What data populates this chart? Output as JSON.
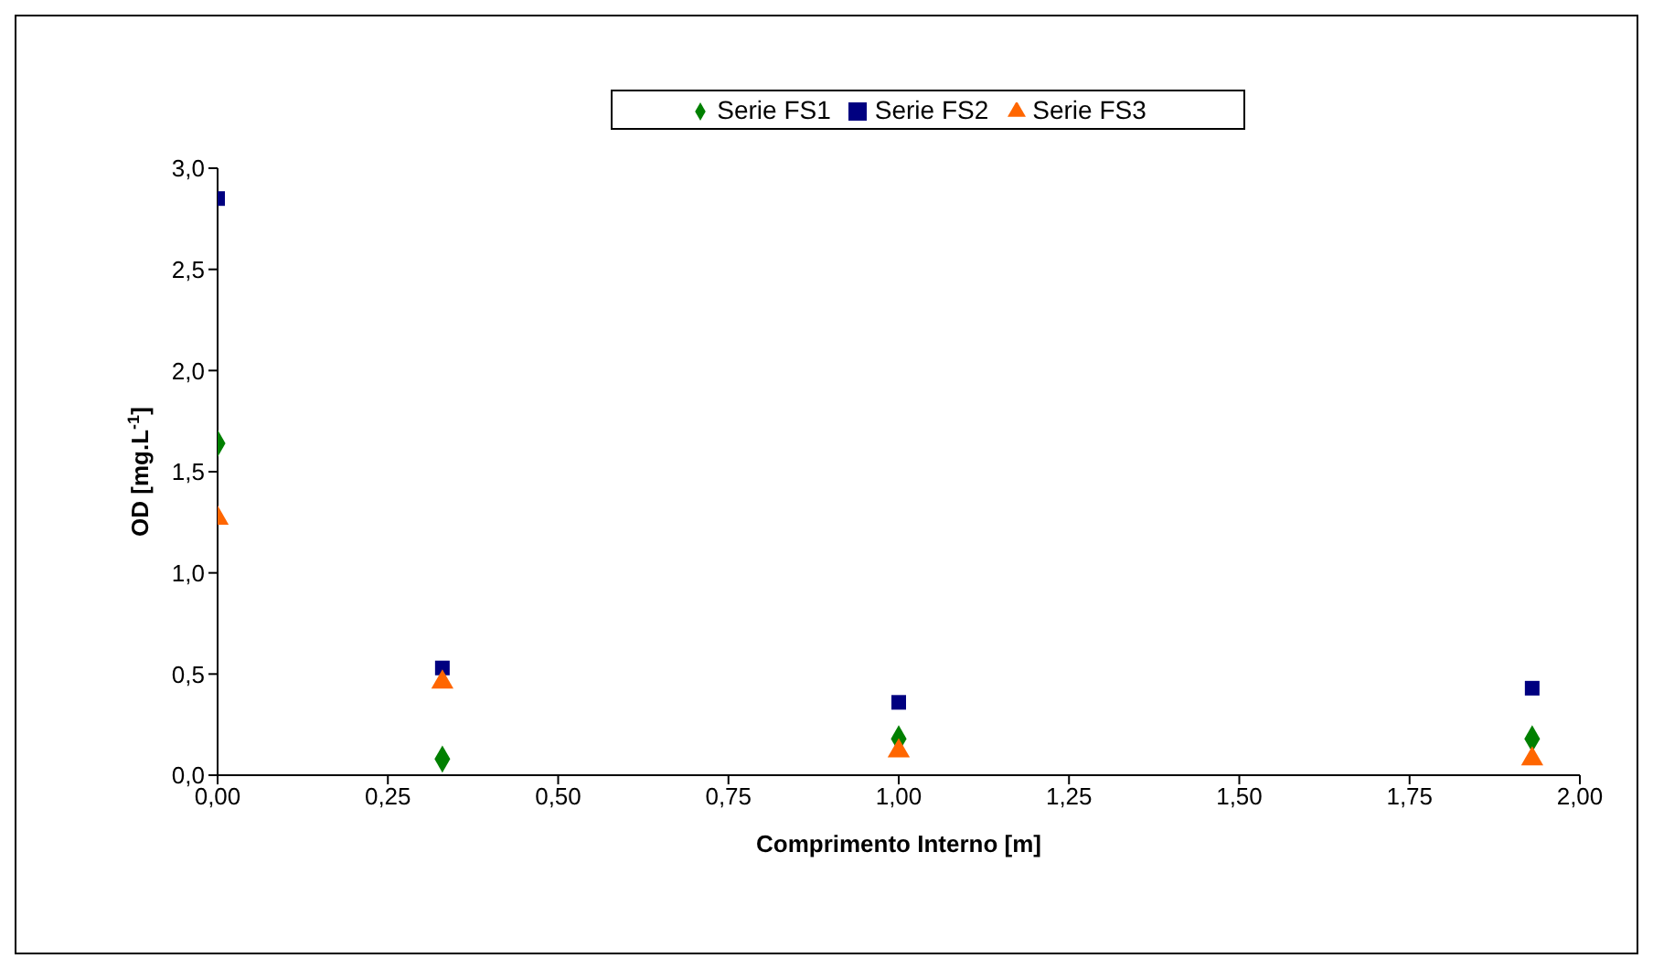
{
  "chart_data": {
    "type": "scatter",
    "xlabel": "Comprimento Interno [m]",
    "ylabel": "OD [mg.L$^{-1}$]",
    "x": [
      0,
      0.33,
      1,
      1.93
    ],
    "series": [
      {
        "name": "Serie FS1",
        "color": "#008000",
        "marker": "diamond",
        "values": [
          1.64,
          0.08,
          0.18,
          0.18
        ]
      },
      {
        "name": "Serie FS2",
        "color": "#000080",
        "marker": "square",
        "values": [
          2.85,
          0.53,
          0.36,
          0.43
        ]
      },
      {
        "name": "Serie FS3",
        "color": "#ff6600",
        "marker": "triangle",
        "values": [
          1.27,
          0.46,
          0.12,
          0.08
        ]
      }
    ],
    "xlim": [
      0,
      2
    ],
    "ylim": [
      0,
      3
    ],
    "xticks": [
      {
        "value": 0,
        "label": "0,00"
      },
      {
        "value": 0.25,
        "label": "0,25"
      },
      {
        "value": 0.5,
        "label": "0,50"
      },
      {
        "value": 0.75,
        "label": "0,75"
      },
      {
        "value": 1,
        "label": "1,00"
      },
      {
        "value": 1.25,
        "label": "1,25"
      },
      {
        "value": 1.5,
        "label": "1,50"
      },
      {
        "value": 1.75,
        "label": "1,75"
      },
      {
        "value": 2,
        "label": "2,00"
      }
    ],
    "yticks": [
      {
        "value": 0,
        "label": "0,0"
      },
      {
        "value": 0.5,
        "label": "0,5"
      },
      {
        "value": 1,
        "label": "1,0"
      },
      {
        "value": 1.5,
        "label": "1,5"
      },
      {
        "value": 2,
        "label": "2,0"
      },
      {
        "value": 2.5,
        "label": "2,5"
      },
      {
        "value": 3,
        "label": "3,0"
      }
    ],
    "grid": false,
    "legend": "top"
  }
}
